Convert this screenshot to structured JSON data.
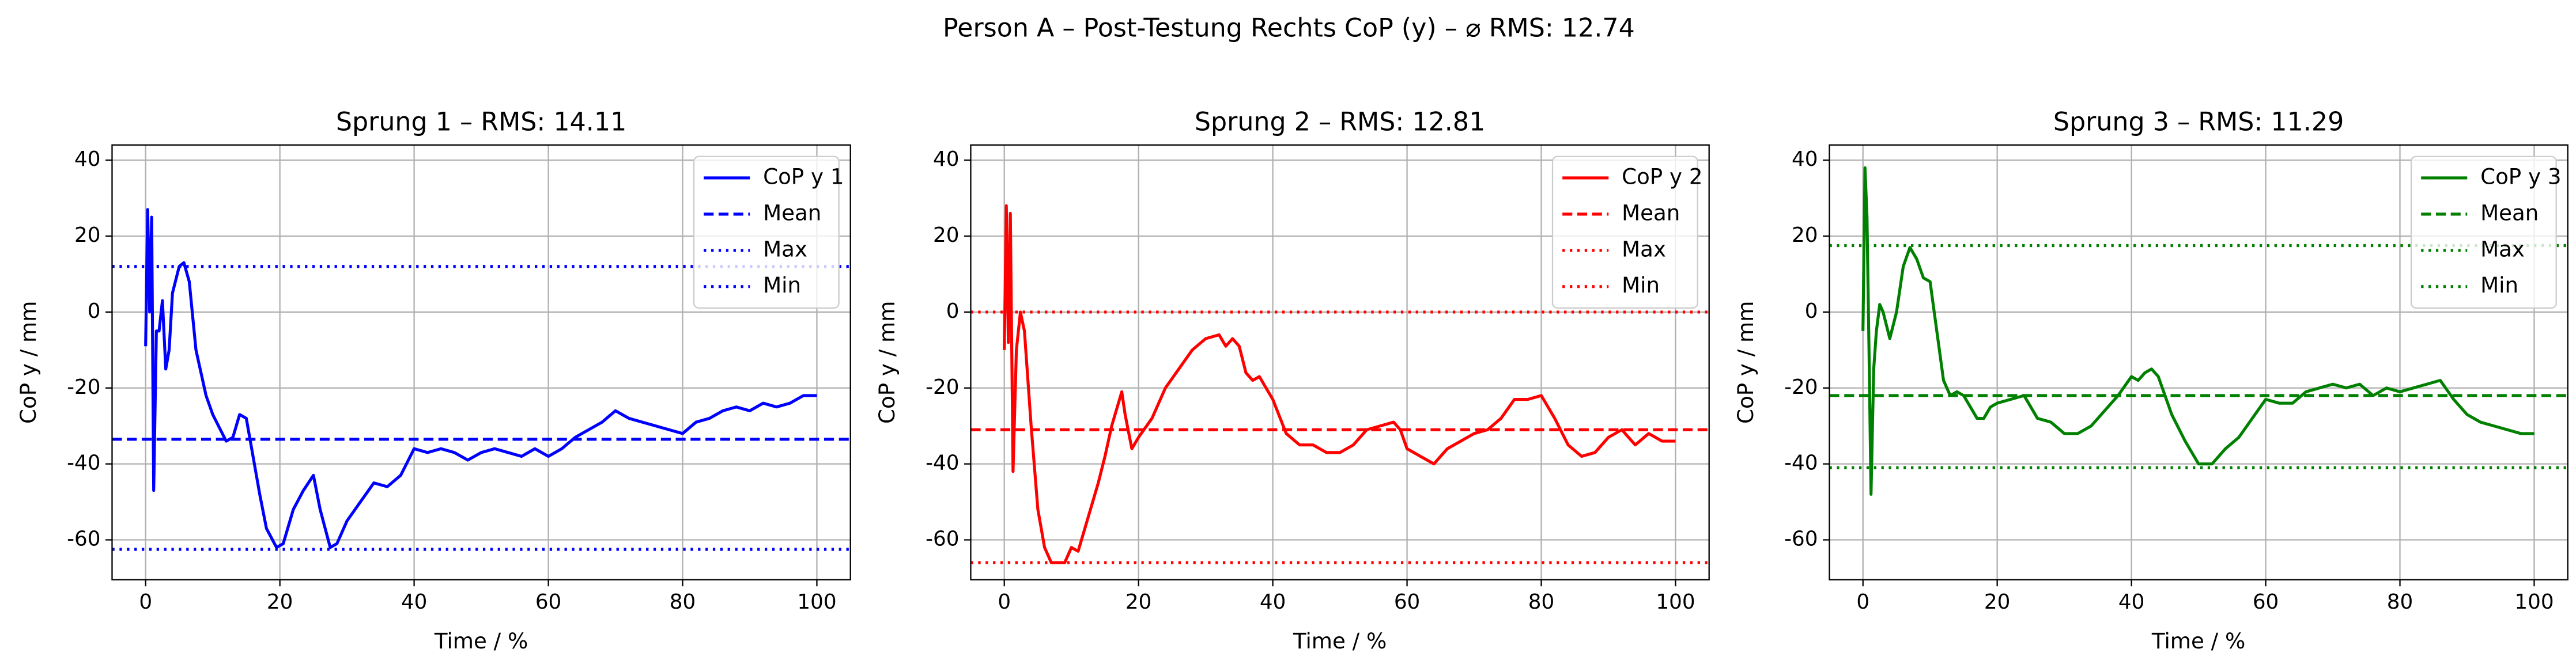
{
  "title": "Person A – Post-Testung Rechts CoP (y) – ⌀ RMS: 12.74",
  "chart_data": [
    {
      "type": "line",
      "title": "Sprung 1 – RMS: 14.11",
      "x_label": "Time / %",
      "y_label": "CoP y / mm",
      "xlim": [
        -5,
        105
      ],
      "ylim": [
        -70.5,
        44
      ],
      "xticks": [
        0,
        20,
        40,
        60,
        80,
        100
      ],
      "yticks": [
        -60,
        -40,
        -20,
        0,
        20,
        40
      ],
      "grid": true,
      "legend": "upper right",
      "series": [
        {
          "name": "CoP y 1",
          "color": "#0000ff",
          "style": "solid",
          "x": [
            0,
            0.3,
            0.6,
            0.9,
            1.2,
            1.6,
            2,
            2.5,
            3,
            3.5,
            4,
            5,
            5.7,
            6.5,
            7.5,
            9,
            10,
            12,
            13,
            14,
            15,
            16,
            17,
            18,
            19.5,
            20.5,
            22,
            23.5,
            25,
            26,
            27.5,
            28.5,
            30,
            32,
            34,
            36,
            38,
            40,
            42,
            44,
            46,
            48,
            50,
            52,
            54,
            56,
            58,
            60,
            62,
            64,
            66,
            68,
            70,
            72,
            74,
            76,
            78,
            80,
            82,
            84,
            86,
            88,
            90,
            92,
            94,
            96,
            98,
            100
          ],
          "values": [
            -9,
            27,
            0,
            25,
            -47,
            -5,
            -5,
            3,
            -15,
            -10,
            5,
            12,
            13,
            8,
            -10,
            -22,
            -27,
            -34,
            -33,
            -27,
            -28,
            -38,
            -48,
            -57,
            -62,
            -61,
            -52,
            -47,
            -43,
            -52,
            -62,
            -61,
            -55,
            -50,
            -45,
            -46,
            -43,
            -36,
            -37,
            -36,
            -37,
            -39,
            -37,
            -36,
            -37,
            -38,
            -36,
            -38,
            -36,
            -33,
            -31,
            -29,
            -26,
            -28,
            -29,
            -30,
            -31,
            -32,
            -29,
            -28,
            -26,
            -25,
            -26,
            -24,
            -25,
            -24,
            -22,
            -22
          ]
        },
        {
          "name": "Mean",
          "color": "#0000ff",
          "style": "dashed",
          "value": -33.5
        },
        {
          "name": "Max",
          "color": "#0000ff",
          "style": "dotted",
          "value": 12
        },
        {
          "name": "Min",
          "color": "#0000ff",
          "style": "dotted",
          "value": -62.5
        }
      ]
    },
    {
      "type": "line",
      "title": "Sprung 2 – RMS: 12.81",
      "x_label": "Time / %",
      "y_label": "CoP y / mm",
      "xlim": [
        -5,
        105
      ],
      "ylim": [
        -70.5,
        44
      ],
      "xticks": [
        0,
        20,
        40,
        60,
        80,
        100
      ],
      "yticks": [
        -60,
        -40,
        -20,
        0,
        20,
        40
      ],
      "grid": true,
      "legend": "upper right",
      "series": [
        {
          "name": "CoP y 2",
          "color": "#ff0000",
          "style": "solid",
          "x": [
            0,
            0.3,
            0.6,
            0.9,
            1.3,
            1.8,
            2.4,
            3,
            4,
            5,
            6,
            7,
            9,
            10,
            11,
            12,
            14,
            15,
            16,
            17,
            17.5,
            18,
            19,
            20,
            22,
            24,
            26,
            28,
            30,
            32,
            33,
            34,
            35,
            36,
            37,
            38,
            40,
            42,
            44,
            46,
            48,
            50,
            52,
            54,
            56,
            58,
            59,
            60,
            62,
            64,
            66,
            68,
            70,
            72,
            74,
            76,
            78,
            80,
            82,
            84,
            86,
            88,
            90,
            92,
            94,
            96,
            98,
            100
          ],
          "values": [
            -10,
            28,
            -8,
            26,
            -42,
            -10,
            0,
            -5,
            -30,
            -52,
            -62,
            -66,
            -66,
            -62,
            -63,
            -57,
            -45,
            -38,
            -30,
            -24,
            -21,
            -27,
            -36,
            -33,
            -28,
            -20,
            -15,
            -10,
            -7,
            -6,
            -9,
            -7,
            -9,
            -16,
            -18,
            -17,
            -23,
            -32,
            -35,
            -35,
            -37,
            -37,
            -35,
            -31,
            -30,
            -29,
            -31,
            -36,
            -38,
            -40,
            -36,
            -34,
            -32,
            -31,
            -28,
            -23,
            -23,
            -22,
            -28,
            -35,
            -38,
            -37,
            -33,
            -31,
            -35,
            -32,
            -34,
            -34
          ]
        },
        {
          "name": "Mean",
          "color": "#ff0000",
          "style": "dashed",
          "value": -31
        },
        {
          "name": "Max",
          "color": "#ff0000",
          "style": "dotted",
          "value": 0
        },
        {
          "name": "Min",
          "color": "#ff0000",
          "style": "dotted",
          "value": -66
        }
      ]
    },
    {
      "type": "line",
      "title": "Sprung 3 – RMS: 11.29",
      "x_label": "Time / %",
      "y_label": "CoP y / mm",
      "xlim": [
        -5,
        105
      ],
      "ylim": [
        -70.5,
        44
      ],
      "xticks": [
        0,
        20,
        40,
        60,
        80,
        100
      ],
      "yticks": [
        -60,
        -40,
        -20,
        0,
        20,
        40
      ],
      "grid": true,
      "legend": "upper right",
      "series": [
        {
          "name": "CoP y 3",
          "color": "#008000",
          "style": "solid",
          "x": [
            0,
            0.3,
            0.6,
            0.9,
            1.2,
            1.6,
            2,
            2.5,
            3,
            4,
            5,
            6,
            7,
            8,
            9,
            10,
            11,
            12,
            13,
            14,
            15,
            16,
            17,
            18,
            19,
            20,
            22,
            24,
            25,
            26,
            28,
            30,
            32,
            34,
            36,
            38,
            40,
            41,
            42,
            43,
            44,
            46,
            48,
            50,
            52,
            54,
            56,
            58,
            60,
            62,
            64,
            66,
            68,
            70,
            72,
            74,
            76,
            78,
            80,
            82,
            84,
            86,
            88,
            90,
            92,
            94,
            96,
            98,
            100
          ],
          "values": [
            -5,
            38,
            25,
            -10,
            -48,
            -15,
            -5,
            2,
            0,
            -7,
            0,
            12,
            17,
            14,
            9,
            8,
            -5,
            -18,
            -22,
            -21,
            -22,
            -25,
            -28,
            -28,
            -25,
            -24,
            -23,
            -22,
            -25,
            -28,
            -29,
            -32,
            -32,
            -30,
            -26,
            -22,
            -17,
            -18,
            -16,
            -15,
            -17,
            -27,
            -34,
            -40,
            -40,
            -36,
            -33,
            -28,
            -23,
            -24,
            -24,
            -21,
            -20,
            -19,
            -20,
            -19,
            -22,
            -20,
            -21,
            -20,
            -19,
            -18,
            -23,
            -27,
            -29,
            -30,
            -31,
            -32,
            -32
          ]
        },
        {
          "name": "Mean",
          "color": "#008000",
          "style": "dashed",
          "value": -22
        },
        {
          "name": "Max",
          "color": "#008000",
          "style": "dotted",
          "value": 17.5
        },
        {
          "name": "Min",
          "color": "#008000",
          "style": "dotted",
          "value": -41
        }
      ]
    }
  ]
}
